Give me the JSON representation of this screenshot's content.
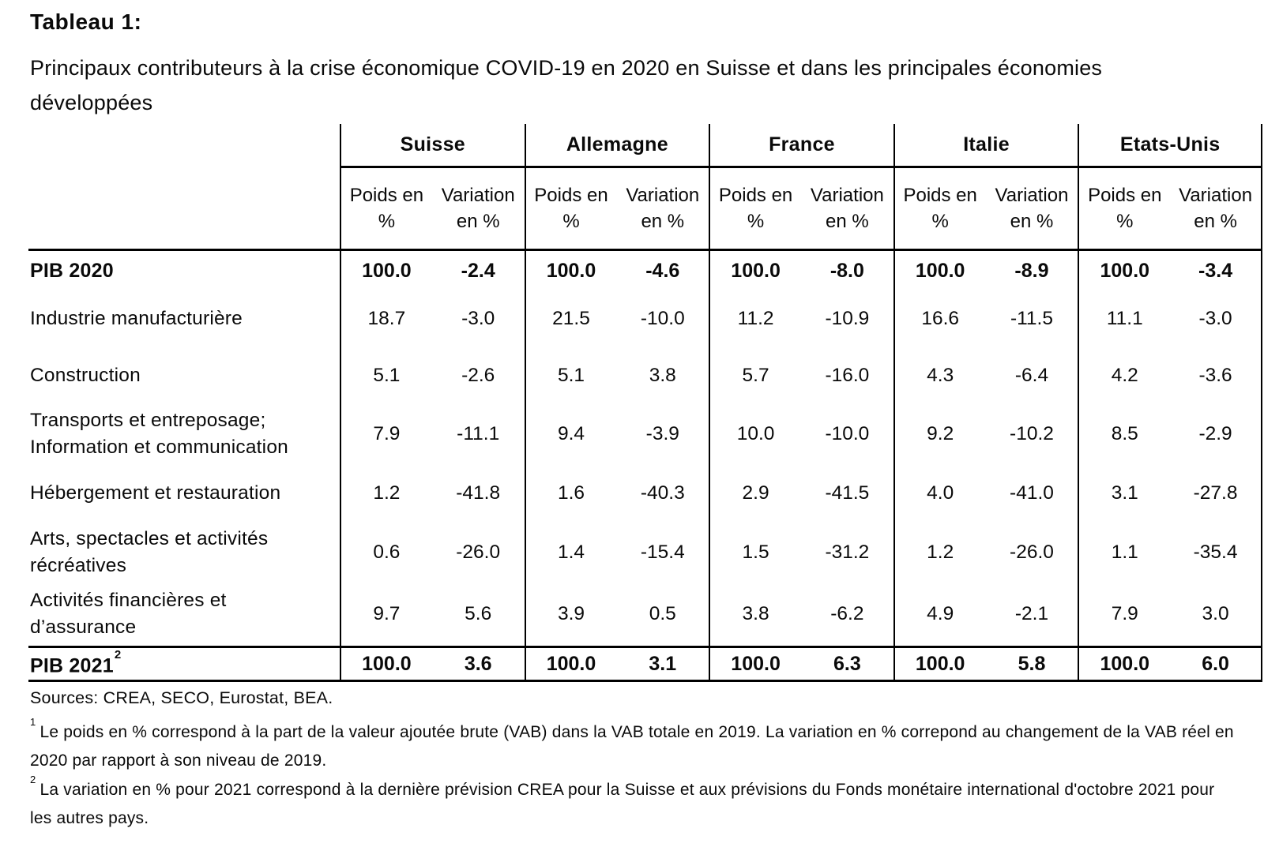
{
  "title": "Tableau 1:",
  "subtitle": "Principaux contributeurs à la crise économique COVID-19 en 2020 en Suisse et dans les principales économies développées",
  "table": {
    "countries": [
      "Suisse",
      "Allemagne",
      "France",
      "Italie",
      "Etats-Unis"
    ],
    "subheaders": {
      "poids": "Poids en\n%",
      "variation": "Variation\nen %"
    },
    "rows": [
      {
        "label": "PIB 2020",
        "sup": "",
        "values": [
          "100.0",
          "-2.4",
          "100.0",
          "-4.6",
          "100.0",
          "-8.0",
          "100.0",
          "-8.9",
          "100.0",
          "-3.4"
        ]
      },
      {
        "label": "Industrie manufacturière",
        "sup": "",
        "values": [
          "18.7",
          "-3.0",
          "21.5",
          "-10.0",
          "11.2",
          "-10.9",
          "16.6",
          "-11.5",
          "11.1",
          "-3.0"
        ]
      },
      {
        "label": "Construction",
        "sup": "",
        "values": [
          "5.1",
          "-2.6",
          "5.1",
          "3.8",
          "5.7",
          "-16.0",
          "4.3",
          "-6.4",
          "4.2",
          "-3.6"
        ]
      },
      {
        "label": "Transports et entreposage;\nInformation et communication",
        "sup": "",
        "values": [
          "7.9",
          "-11.1",
          "9.4",
          "-3.9",
          "10.0",
          "-10.0",
          "9.2",
          "-10.2",
          "8.5",
          "-2.9"
        ]
      },
      {
        "label": "Hébergement et restauration",
        "sup": "",
        "values": [
          "1.2",
          "-41.8",
          "1.6",
          "-40.3",
          "2.9",
          "-41.5",
          "4.0",
          "-41.0",
          "3.1",
          "-27.8"
        ]
      },
      {
        "label": "Arts, spectacles et activités\nrécréatives",
        "sup": "",
        "values": [
          "0.6",
          "-26.0",
          "1.4",
          "-15.4",
          "1.5",
          "-31.2",
          "1.2",
          "-26.0",
          "1.1",
          "-35.4"
        ]
      },
      {
        "label": "Activités financières et\nd’assurance",
        "sup": "",
        "values": [
          "9.7",
          "5.6",
          "3.9",
          "0.5",
          "3.8",
          "-6.2",
          "4.9",
          "-2.1",
          "7.9",
          "3.0"
        ]
      },
      {
        "label": "PIB 2021",
        "sup": "2",
        "values": [
          "100.0",
          "3.6",
          "100.0",
          "3.1",
          "100.0",
          "6.3",
          "100.0",
          "5.8",
          "100.0",
          "6.0"
        ]
      }
    ]
  },
  "footer": {
    "sources": "Sources: CREA, SECO, Eurostat, BEA.",
    "footnotes": [
      {
        "marker": "1",
        "text": "Le poids en % correspond à la part de la valeur ajoutée brute (VAB) dans la VAB totale en 2019. La variation en % correpond au changement de la VAB réel en 2020 par rapport à son niveau de 2019."
      },
      {
        "marker": "2",
        "text": "La variation en % pour 2021 correspond à la dernière prévision CREA pour la Suisse et aux prévisions du Fonds monétaire international d'octobre 2021 pour les autres pays."
      }
    ]
  }
}
